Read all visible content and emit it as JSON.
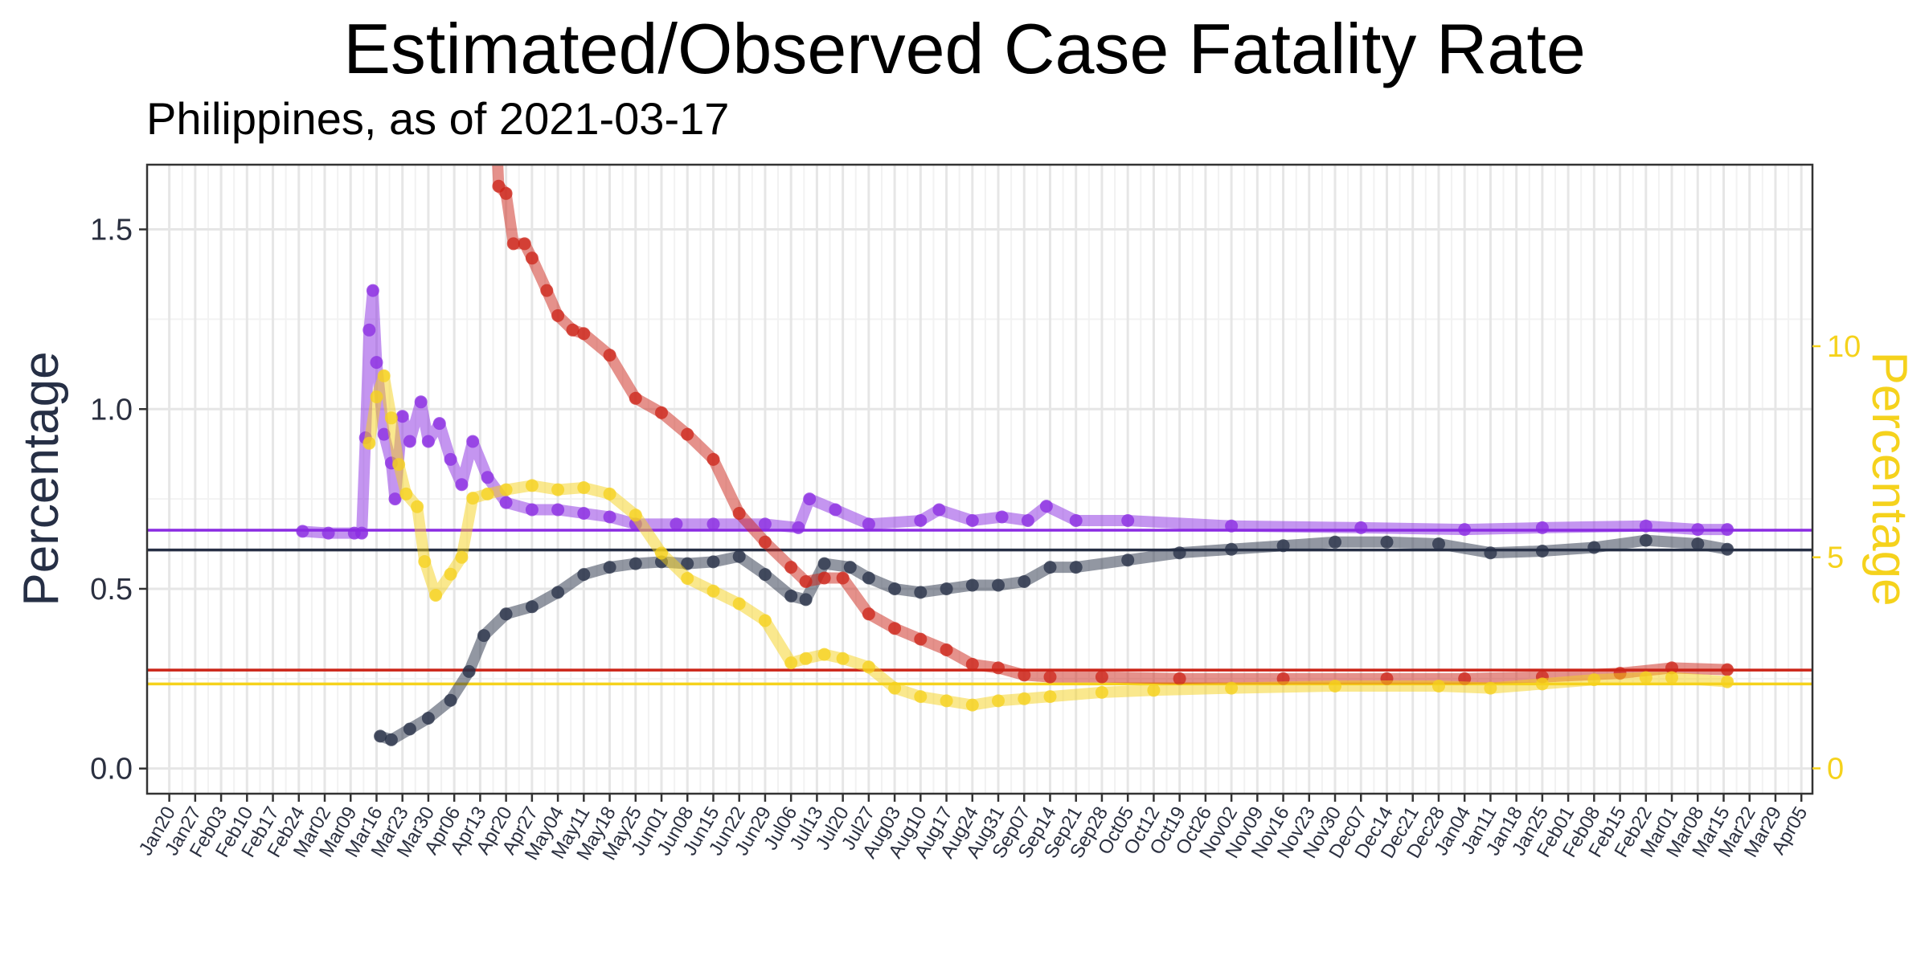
{
  "chart_data": {
    "type": "line",
    "title": "Estimated/Observed Case Fatality Rate",
    "subtitle": "Philippines, as of 2021-03-17",
    "ylabel": "Percentage",
    "y2label": "Percentage",
    "ylim": [
      -0.07,
      1.68
    ],
    "y2lim": [
      -0.6,
      14.3
    ],
    "yticks": [
      "0.0",
      "0.5",
      "1.0",
      "1.5"
    ],
    "y2ticks": [
      "0",
      "5",
      "10"
    ],
    "xlim": [
      "2020-01-14",
      "2021-04-08"
    ],
    "xticks": [
      "Jan20",
      "Jan27",
      "Feb03",
      "Feb10",
      "Feb17",
      "Feb24",
      "Mar02",
      "Mar09",
      "Mar16",
      "Mar23",
      "Mar30",
      "Apr06",
      "Apr13",
      "Apr20",
      "Apr27",
      "May04",
      "May11",
      "May18",
      "May25",
      "Jun01",
      "Jun08",
      "Jun15",
      "Jun22",
      "Jun29",
      "Jul06",
      "Jul13",
      "Jul20",
      "Jul27",
      "Aug03",
      "Aug10",
      "Aug17",
      "Aug24",
      "Aug31",
      "Sep07",
      "Sep14",
      "Sep21",
      "Sep28",
      "Oct05",
      "Oct12",
      "Oct19",
      "Oct26",
      "Nov02",
      "Nov09",
      "Nov16",
      "Nov23",
      "Nov30",
      "Dec07",
      "Dec14",
      "Dec21",
      "Dec28",
      "Jan04",
      "Jan11",
      "Jan18",
      "Jan25",
      "Feb01",
      "Feb08",
      "Feb15",
      "Feb22",
      "Mar01",
      "Mar08",
      "Mar15",
      "Mar22",
      "Mar29",
      "Apr05"
    ],
    "grid": true,
    "colors": {
      "purple": "#8a2be2",
      "navy": "#262f45",
      "red": "#cc2418",
      "yellow": "#f5d21c"
    },
    "hlines": [
      {
        "color": "#8a2be2",
        "axis": "left",
        "y": 0.663
      },
      {
        "color": "#262f45",
        "axis": "left",
        "y": 0.608
      },
      {
        "color": "#cc2418",
        "axis": "left",
        "y": 0.274
      },
      {
        "color": "#f5d21c",
        "axis": "right",
        "y": 2.0
      }
    ],
    "series": [
      {
        "color": "#8a2be2",
        "axis": "left",
        "points": [
          [
            "2020-02-25",
            0.66
          ],
          [
            "2020-03-03",
            0.655
          ],
          [
            "2020-03-10",
            0.655
          ],
          [
            "2020-03-12",
            0.655
          ],
          [
            "2020-03-13",
            0.92
          ],
          [
            "2020-03-14",
            1.22
          ],
          [
            "2020-03-15",
            1.33
          ],
          [
            "2020-03-16",
            1.13
          ],
          [
            "2020-03-18",
            0.93
          ],
          [
            "2020-03-20",
            0.85
          ],
          [
            "2020-03-21",
            0.75
          ],
          [
            "2020-03-23",
            0.98
          ],
          [
            "2020-03-25",
            0.91
          ],
          [
            "2020-03-28",
            1.02
          ],
          [
            "2020-03-30",
            0.91
          ],
          [
            "2020-04-02",
            0.96
          ],
          [
            "2020-04-05",
            0.86
          ],
          [
            "2020-04-08",
            0.79
          ],
          [
            "2020-04-11",
            0.91
          ],
          [
            "2020-04-15",
            0.81
          ],
          [
            "2020-04-20",
            0.74
          ],
          [
            "2020-04-27",
            0.72
          ],
          [
            "2020-05-04",
            0.72
          ],
          [
            "2020-05-11",
            0.71
          ],
          [
            "2020-05-18",
            0.7
          ],
          [
            "2020-05-25",
            0.68
          ],
          [
            "2020-06-05",
            0.68
          ],
          [
            "2020-06-15",
            0.68
          ],
          [
            "2020-06-29",
            0.68
          ],
          [
            "2020-07-08",
            0.67
          ],
          [
            "2020-07-11",
            0.75
          ],
          [
            "2020-07-18",
            0.72
          ],
          [
            "2020-07-27",
            0.68
          ],
          [
            "2020-08-10",
            0.69
          ],
          [
            "2020-08-15",
            0.72
          ],
          [
            "2020-08-24",
            0.69
          ],
          [
            "2020-09-01",
            0.7
          ],
          [
            "2020-09-08",
            0.69
          ],
          [
            "2020-09-13",
            0.73
          ],
          [
            "2020-09-21",
            0.69
          ],
          [
            "2020-10-05",
            0.69
          ],
          [
            "2020-11-02",
            0.675
          ],
          [
            "2020-12-07",
            0.67
          ],
          [
            "2021-01-04",
            0.665
          ],
          [
            "2021-01-25",
            0.67
          ],
          [
            "2021-02-22",
            0.675
          ],
          [
            "2021-03-08",
            0.665
          ],
          [
            "2021-03-16",
            0.665
          ]
        ]
      },
      {
        "color": "#262f45",
        "axis": "left",
        "points": [
          [
            "2020-03-17",
            0.09
          ],
          [
            "2020-03-20",
            0.08
          ],
          [
            "2020-03-25",
            0.11
          ],
          [
            "2020-03-30",
            0.14
          ],
          [
            "2020-04-05",
            0.19
          ],
          [
            "2020-04-10",
            0.27
          ],
          [
            "2020-04-14",
            0.37
          ],
          [
            "2020-04-20",
            0.43
          ],
          [
            "2020-04-27",
            0.45
          ],
          [
            "2020-05-04",
            0.49
          ],
          [
            "2020-05-11",
            0.54
          ],
          [
            "2020-05-18",
            0.56
          ],
          [
            "2020-05-25",
            0.57
          ],
          [
            "2020-06-01",
            0.575
          ],
          [
            "2020-06-08",
            0.57
          ],
          [
            "2020-06-15",
            0.575
          ],
          [
            "2020-06-22",
            0.59
          ],
          [
            "2020-06-29",
            0.54
          ],
          [
            "2020-07-06",
            0.48
          ],
          [
            "2020-07-10",
            0.47
          ],
          [
            "2020-07-15",
            0.57
          ],
          [
            "2020-07-22",
            0.56
          ],
          [
            "2020-07-27",
            0.53
          ],
          [
            "2020-08-03",
            0.5
          ],
          [
            "2020-08-10",
            0.49
          ],
          [
            "2020-08-17",
            0.5
          ],
          [
            "2020-08-24",
            0.51
          ],
          [
            "2020-08-31",
            0.51
          ],
          [
            "2020-09-07",
            0.52
          ],
          [
            "2020-09-14",
            0.56
          ],
          [
            "2020-09-21",
            0.56
          ],
          [
            "2020-10-05",
            0.58
          ],
          [
            "2020-10-19",
            0.6
          ],
          [
            "2020-11-02",
            0.61
          ],
          [
            "2020-11-16",
            0.62
          ],
          [
            "2020-11-30",
            0.63
          ],
          [
            "2020-12-14",
            0.63
          ],
          [
            "2020-12-28",
            0.625
          ],
          [
            "2021-01-11",
            0.6
          ],
          [
            "2021-01-25",
            0.605
          ],
          [
            "2021-02-08",
            0.615
          ],
          [
            "2021-02-22",
            0.635
          ],
          [
            "2021-03-08",
            0.625
          ],
          [
            "2021-03-16",
            0.61
          ]
        ]
      },
      {
        "color": "#cc2418",
        "axis": "left",
        "points": [
          [
            "2020-04-12",
            3.0
          ],
          [
            "2020-04-18",
            1.62
          ],
          [
            "2020-04-20",
            1.6
          ],
          [
            "2020-04-22",
            1.46
          ],
          [
            "2020-04-25",
            1.46
          ],
          [
            "2020-04-27",
            1.42
          ],
          [
            "2020-05-01",
            1.33
          ],
          [
            "2020-05-04",
            1.26
          ],
          [
            "2020-05-08",
            1.22
          ],
          [
            "2020-05-11",
            1.21
          ],
          [
            "2020-05-18",
            1.15
          ],
          [
            "2020-05-25",
            1.03
          ],
          [
            "2020-06-01",
            0.99
          ],
          [
            "2020-06-08",
            0.93
          ],
          [
            "2020-06-15",
            0.86
          ],
          [
            "2020-06-22",
            0.71
          ],
          [
            "2020-06-29",
            0.63
          ],
          [
            "2020-07-06",
            0.56
          ],
          [
            "2020-07-10",
            0.52
          ],
          [
            "2020-07-15",
            0.53
          ],
          [
            "2020-07-20",
            0.53
          ],
          [
            "2020-07-27",
            0.43
          ],
          [
            "2020-08-03",
            0.39
          ],
          [
            "2020-08-10",
            0.36
          ],
          [
            "2020-08-17",
            0.33
          ],
          [
            "2020-08-24",
            0.29
          ],
          [
            "2020-08-31",
            0.28
          ],
          [
            "2020-09-07",
            0.26
          ],
          [
            "2020-09-14",
            0.255
          ],
          [
            "2020-09-28",
            0.255
          ],
          [
            "2020-10-19",
            0.25
          ],
          [
            "2020-11-16",
            0.25
          ],
          [
            "2020-12-14",
            0.25
          ],
          [
            "2021-01-04",
            0.25
          ],
          [
            "2021-01-25",
            0.255
          ],
          [
            "2021-02-15",
            0.265
          ],
          [
            "2021-03-01",
            0.28
          ],
          [
            "2021-03-16",
            0.275
          ]
        ]
      },
      {
        "color": "#f5d21c",
        "axis": "right",
        "points": [
          [
            "2020-03-14",
            7.7
          ],
          [
            "2020-03-16",
            8.8
          ],
          [
            "2020-03-18",
            9.3
          ],
          [
            "2020-03-20",
            8.3
          ],
          [
            "2020-03-22",
            7.2
          ],
          [
            "2020-03-24",
            6.5
          ],
          [
            "2020-03-27",
            6.2
          ],
          [
            "2020-03-29",
            4.9
          ],
          [
            "2020-04-01",
            4.1
          ],
          [
            "2020-04-05",
            4.6
          ],
          [
            "2020-04-08",
            5.0
          ],
          [
            "2020-04-11",
            6.4
          ],
          [
            "2020-04-15",
            6.5
          ],
          [
            "2020-04-20",
            6.6
          ],
          [
            "2020-04-27",
            6.7
          ],
          [
            "2020-05-04",
            6.6
          ],
          [
            "2020-05-11",
            6.65
          ],
          [
            "2020-05-18",
            6.5
          ],
          [
            "2020-05-25",
            6.0
          ],
          [
            "2020-06-01",
            5.1
          ],
          [
            "2020-06-08",
            4.5
          ],
          [
            "2020-06-15",
            4.2
          ],
          [
            "2020-06-22",
            3.9
          ],
          [
            "2020-06-29",
            3.5
          ],
          [
            "2020-07-06",
            2.5
          ],
          [
            "2020-07-10",
            2.6
          ],
          [
            "2020-07-15",
            2.7
          ],
          [
            "2020-07-20",
            2.6
          ],
          [
            "2020-07-27",
            2.4
          ],
          [
            "2020-08-03",
            1.9
          ],
          [
            "2020-08-10",
            1.7
          ],
          [
            "2020-08-17",
            1.6
          ],
          [
            "2020-08-24",
            1.5
          ],
          [
            "2020-08-31",
            1.6
          ],
          [
            "2020-09-07",
            1.65
          ],
          [
            "2020-09-14",
            1.7
          ],
          [
            "2020-09-28",
            1.8
          ],
          [
            "2020-10-12",
            1.85
          ],
          [
            "2020-11-02",
            1.9
          ],
          [
            "2020-11-30",
            1.95
          ],
          [
            "2020-12-28",
            1.95
          ],
          [
            "2021-01-11",
            1.9
          ],
          [
            "2021-01-25",
            2.0
          ],
          [
            "2021-02-08",
            2.1
          ],
          [
            "2021-02-22",
            2.15
          ],
          [
            "2021-03-01",
            2.15
          ],
          [
            "2021-03-16",
            2.05
          ]
        ]
      }
    ]
  }
}
